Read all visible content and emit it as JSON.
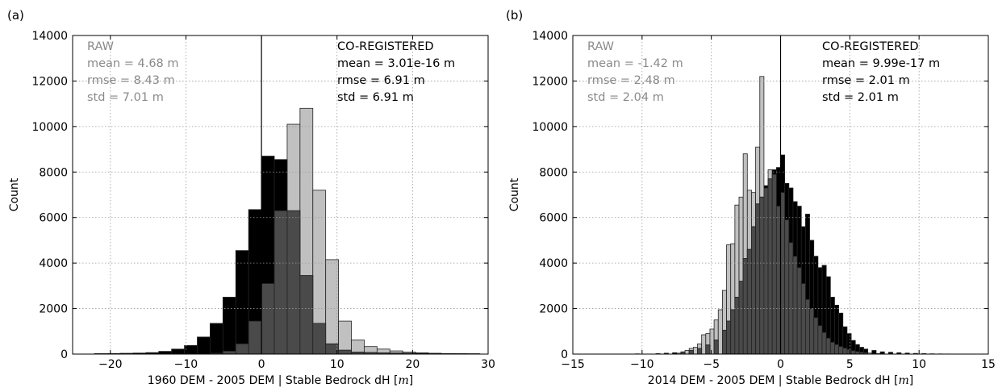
{
  "chart_data": [
    {
      "panel_label": "(a)",
      "type": "bar",
      "xlabel": "1960 DEM - 2005 DEM | Stable Bedrock dH [",
      "xlabel_unit": "m",
      "xlabel_suffix": "]",
      "ylabel": "Count",
      "xlim": [
        -25,
        30
      ],
      "ylim": [
        0,
        14000
      ],
      "xticks": [
        "−20",
        "−10",
        "0",
        "10",
        "20",
        "30"
      ],
      "xtick_values": [
        -20,
        -10,
        0,
        10,
        20,
        30
      ],
      "yticks": [
        "0",
        "2000",
        "4000",
        "6000",
        "8000",
        "10000",
        "12000",
        "14000"
      ],
      "ytick_values": [
        0,
        2000,
        4000,
        6000,
        8000,
        10000,
        12000,
        14000
      ],
      "grid": true,
      "vline_x": 0,
      "bin_width": 1.7,
      "series": [
        {
          "name": "RAW",
          "color": "#c0c0c0",
          "bins": [
            [
              -8.5,
              10
            ],
            [
              -6.8,
              40
            ],
            [
              -5.1,
              130
            ],
            [
              -3.4,
              450
            ],
            [
              -1.7,
              1450
            ],
            [
              0.0,
              3100
            ],
            [
              1.7,
              6300
            ],
            [
              3.4,
              10100
            ],
            [
              5.1,
              10800
            ],
            [
              6.8,
              7200
            ],
            [
              8.5,
              4150
            ],
            [
              10.2,
              1450
            ],
            [
              11.9,
              620
            ],
            [
              13.6,
              330
            ],
            [
              15.3,
              220
            ],
            [
              17.0,
              140
            ],
            [
              18.7,
              90
            ],
            [
              20.4,
              55
            ],
            [
              22.1,
              35
            ],
            [
              23.8,
              22
            ],
            [
              25.5,
              14
            ],
            [
              27.2,
              9
            ]
          ]
        },
        {
          "name": "CO-REGISTERED",
          "color": "#000000",
          "bins": [
            [
              -22.1,
              20
            ],
            [
              -20.4,
              25
            ],
            [
              -18.7,
              35
            ],
            [
              -17.0,
              45
            ],
            [
              -15.3,
              65
            ],
            [
              -13.6,
              120
            ],
            [
              -11.9,
              220
            ],
            [
              -10.2,
              380
            ],
            [
              -8.5,
              750
            ],
            [
              -6.8,
              1350
            ],
            [
              -5.1,
              2500
            ],
            [
              -3.4,
              4550
            ],
            [
              -1.7,
              6350
            ],
            [
              0.0,
              8700
            ],
            [
              1.7,
              8550
            ],
            [
              3.4,
              6300
            ],
            [
              5.1,
              3450
            ],
            [
              6.8,
              1350
            ],
            [
              8.5,
              450
            ],
            [
              10.2,
              170
            ],
            [
              11.9,
              90
            ],
            [
              13.6,
              70
            ],
            [
              15.3,
              55
            ],
            [
              17.0,
              45
            ],
            [
              18.7,
              38
            ],
            [
              20.4,
              32
            ],
            [
              22.1,
              26
            ],
            [
              23.8,
              22
            ],
            [
              25.5,
              18
            ],
            [
              27.2,
              14
            ]
          ]
        }
      ],
      "raw_stats": [
        "RAW",
        "mean = 4.68 m",
        "rmse = 8.43 m",
        "std = 7.01 m"
      ],
      "coreg_stats": [
        "CO-REGISTERED",
        "mean = 3.01e-16 m",
        "rmse = 6.91 m",
        "std = 6.91 m"
      ]
    },
    {
      "panel_label": "(b)",
      "type": "bar",
      "xlabel": "2014 DEM - 2005 DEM | Stable Bedrock dH [",
      "xlabel_unit": "m",
      "xlabel_suffix": "]",
      "ylabel": "Count",
      "xlim": [
        -15,
        15
      ],
      "ylim": [
        0,
        14000
      ],
      "xticks": [
        "−15",
        "−10",
        "−5",
        "0",
        "5",
        "10",
        "15"
      ],
      "xtick_values": [
        -15,
        -10,
        -5,
        0,
        5,
        10,
        15
      ],
      "yticks": [
        "0",
        "2000",
        "4000",
        "6000",
        "8000",
        "10000",
        "12000",
        "14000"
      ],
      "ytick_values": [
        0,
        2000,
        4000,
        6000,
        8000,
        10000,
        12000,
        14000
      ],
      "grid": true,
      "vline_x": 0,
      "bin_width": 0.3,
      "series": [
        {
          "name": "RAW",
          "color": "#c0c0c0",
          "bins": [
            [
              -7.5,
              40
            ],
            [
              -7.2,
              90
            ],
            [
              -6.9,
              160
            ],
            [
              -6.6,
              250
            ],
            [
              -6.3,
              300
            ],
            [
              -6.0,
              450
            ],
            [
              -5.7,
              850
            ],
            [
              -5.4,
              900
            ],
            [
              -5.1,
              1100
            ],
            [
              -4.8,
              1500
            ],
            [
              -4.5,
              1950
            ],
            [
              -4.2,
              2800
            ],
            [
              -3.9,
              4800
            ],
            [
              -3.6,
              4850
            ],
            [
              -3.3,
              6550
            ],
            [
              -3.0,
              6900
            ],
            [
              -2.7,
              8800
            ],
            [
              -2.4,
              7200
            ],
            [
              -2.1,
              7100
            ],
            [
              -1.8,
              9100
            ],
            [
              -1.5,
              12200
            ],
            [
              -1.2,
              7300
            ],
            [
              -0.9,
              8100
            ],
            [
              -0.6,
              7900
            ],
            [
              -0.3,
              6500
            ],
            [
              0.0,
              7100
            ],
            [
              0.3,
              5900
            ],
            [
              0.6,
              4900
            ],
            [
              0.9,
              4300
            ],
            [
              1.2,
              3800
            ],
            [
              1.5,
              3100
            ],
            [
              1.8,
              2400
            ],
            [
              2.1,
              2000
            ],
            [
              2.4,
              1600
            ],
            [
              2.7,
              1250
            ],
            [
              3.0,
              950
            ],
            [
              3.3,
              700
            ],
            [
              3.6,
              520
            ],
            [
              3.9,
              420
            ],
            [
              4.2,
              330
            ],
            [
              4.5,
              260
            ],
            [
              4.8,
              200
            ],
            [
              5.1,
              150
            ],
            [
              5.4,
              110
            ],
            [
              5.7,
              80
            ],
            [
              6.0,
              60
            ],
            [
              6.3,
              45
            ],
            [
              6.6,
              30
            ],
            [
              6.9,
              20
            ]
          ]
        },
        {
          "name": "CO-REGISTERED",
          "color": "#000000",
          "bins": [
            [
              -10.5,
              10
            ],
            [
              -9.0,
              20
            ],
            [
              -8.4,
              40
            ],
            [
              -7.8,
              60
            ],
            [
              -7.2,
              100
            ],
            [
              -6.6,
              160
            ],
            [
              -6.0,
              250
            ],
            [
              -5.4,
              400
            ],
            [
              -4.8,
              620
            ],
            [
              -4.2,
              1050
            ],
            [
              -3.9,
              1450
            ],
            [
              -3.6,
              1950
            ],
            [
              -3.3,
              2500
            ],
            [
              -3.0,
              3200
            ],
            [
              -2.7,
              4200
            ],
            [
              -2.4,
              4600
            ],
            [
              -2.1,
              5600
            ],
            [
              -1.8,
              6600
            ],
            [
              -1.5,
              6900
            ],
            [
              -1.2,
              7400
            ],
            [
              -0.9,
              7700
            ],
            [
              -0.6,
              8100
            ],
            [
              -0.3,
              8200
            ],
            [
              0.0,
              8750
            ],
            [
              0.3,
              7500
            ],
            [
              0.6,
              7300
            ],
            [
              0.9,
              6700
            ],
            [
              1.2,
              6500
            ],
            [
              1.5,
              5600
            ],
            [
              1.8,
              6150
            ],
            [
              2.1,
              5000
            ],
            [
              2.4,
              4300
            ],
            [
              2.7,
              3800
            ],
            [
              3.0,
              3900
            ],
            [
              3.3,
              3400
            ],
            [
              3.6,
              2500
            ],
            [
              3.9,
              2150
            ],
            [
              4.2,
              1800
            ],
            [
              4.5,
              1200
            ],
            [
              4.8,
              900
            ],
            [
              5.1,
              600
            ],
            [
              5.4,
              420
            ],
            [
              5.7,
              300
            ],
            [
              6.0,
              220
            ],
            [
              6.6,
              160
            ],
            [
              7.2,
              100
            ],
            [
              7.8,
              80
            ],
            [
              8.4,
              60
            ],
            [
              9.0,
              45
            ],
            [
              9.6,
              30
            ],
            [
              10.2,
              20
            ],
            [
              10.8,
              12
            ],
            [
              11.4,
              8
            ],
            [
              12.0,
              5
            ]
          ]
        }
      ],
      "raw_stats": [
        "RAW",
        "mean =  -1.42 m",
        "rmse = 2.48 m",
        "std =  2.04 m"
      ],
      "coreg_stats": [
        "CO-REGISTERED",
        "mean =  9.99e-17 m",
        "rmse = 2.01 m",
        "std =  2.01 m"
      ]
    }
  ]
}
